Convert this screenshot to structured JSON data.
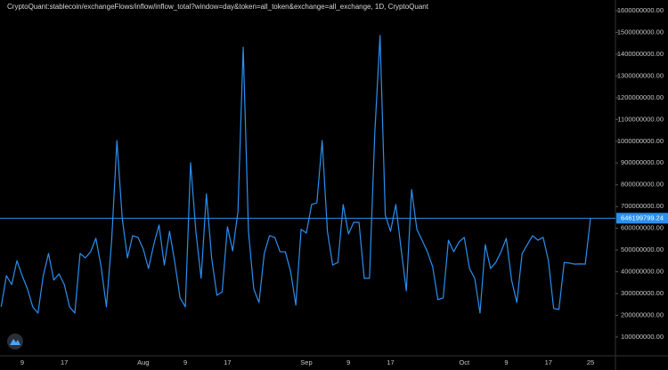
{
  "chart_data": {
    "type": "line",
    "title": "CryptoQuant:stablecoin/exchangeFlows/inflow/inflow_total?window=day&token=all_token&exchange=all_exchange, 1D, CryptoQuant",
    "categories": [
      null,
      null,
      null,
      null,
      "9",
      null,
      null,
      null,
      null,
      null,
      null,
      null,
      "17",
      null,
      null,
      null,
      null,
      null,
      null,
      null,
      null,
      null,
      null,
      null,
      null,
      null,
      null,
      "Aug",
      null,
      null,
      null,
      null,
      null,
      null,
      null,
      "9",
      null,
      null,
      null,
      null,
      null,
      null,
      null,
      "17",
      null,
      null,
      null,
      null,
      null,
      null,
      null,
      null,
      null,
      null,
      null,
      null,
      null,
      null,
      "Sep",
      null,
      null,
      null,
      null,
      null,
      null,
      null,
      "9",
      null,
      null,
      null,
      null,
      null,
      null,
      null,
      "17",
      null,
      null,
      null,
      null,
      null,
      null,
      null,
      null,
      null,
      null,
      null,
      null,
      null,
      "Oct",
      null,
      null,
      null,
      null,
      null,
      null,
      null,
      "9",
      null,
      null,
      null,
      null,
      null,
      null,
      null,
      "17",
      null,
      null,
      null,
      null,
      null,
      null,
      null,
      "25"
    ],
    "values": [
      239000000,
      382000000,
      341000000,
      451000000,
      382000000,
      321000000,
      239000000,
      210000000,
      382000000,
      484000000,
      362000000,
      390000000,
      341000000,
      239000000,
      210000000,
      484000000,
      464000000,
      492000000,
      554000000,
      423000000,
      239000000,
      545000000,
      1003000000,
      648000000,
      464000000,
      566000000,
      558000000,
      505000000,
      415000000,
      525000000,
      615000000,
      431000000,
      586000000,
      443000000,
      280000000,
      239000000,
      901000000,
      586000000,
      370000000,
      758000000,
      464000000,
      292000000,
      308000000,
      607000000,
      496000000,
      676000000,
      1432000000,
      586000000,
      321000000,
      259000000,
      484000000,
      566000000,
      558000000,
      492000000,
      492000000,
      402000000,
      247000000,
      595000000,
      578000000,
      709000000,
      717000000,
      1003000000,
      586000000,
      431000000,
      443000000,
      709000000,
      574000000,
      627000000,
      627000000,
      370000000,
      370000000,
      1036000000,
      1486000000,
      660000000,
      586000000,
      709000000,
      505000000,
      313000000,
      778000000,
      595000000,
      545000000,
      492000000,
      423000000,
      272000000,
      280000000,
      545000000,
      492000000,
      537000000,
      558000000,
      415000000,
      370000000,
      210000000,
      525000000,
      415000000,
      443000000,
      492000000,
      554000000,
      362000000,
      259000000,
      484000000,
      525000000,
      566000000,
      545000000,
      558000000,
      451000000,
      231000000,
      227000000,
      443000000,
      440000000,
      435000000,
      436000000,
      435000000,
      646199799.24
    ],
    "color": "#2b8ff0",
    "current_value": 646199799.24,
    "ylim": [
      14000000,
      1649000000
    ],
    "yticks": [
      {
        "value": 100000000,
        "label": "100000000.00"
      },
      {
        "value": 200000000,
        "label": "200000000.00"
      },
      {
        "value": 300000000,
        "label": "300000000.00"
      },
      {
        "value": 400000000,
        "label": "400000000.00"
      },
      {
        "value": 500000000,
        "label": "500000000.00"
      },
      {
        "value": 600000000,
        "label": "600000000.00"
      },
      {
        "value": 700000000,
        "label": "700000000.00"
      },
      {
        "value": 800000000,
        "label": "800000000.00"
      },
      {
        "value": 900000000,
        "label": "900000000.00"
      },
      {
        "value": 1000000000,
        "label": "1000000000.00"
      },
      {
        "value": 1100000000,
        "label": "1100000000.00"
      },
      {
        "value": 1200000000,
        "label": "1200000000.00"
      },
      {
        "value": 1300000000,
        "label": "1300000000.00"
      },
      {
        "value": 1400000000,
        "label": "1400000000.00"
      },
      {
        "value": 1500000000,
        "label": "1500000000.00"
      },
      {
        "value": 1600000000,
        "label": "1600000000.00"
      }
    ],
    "grid": false
  }
}
